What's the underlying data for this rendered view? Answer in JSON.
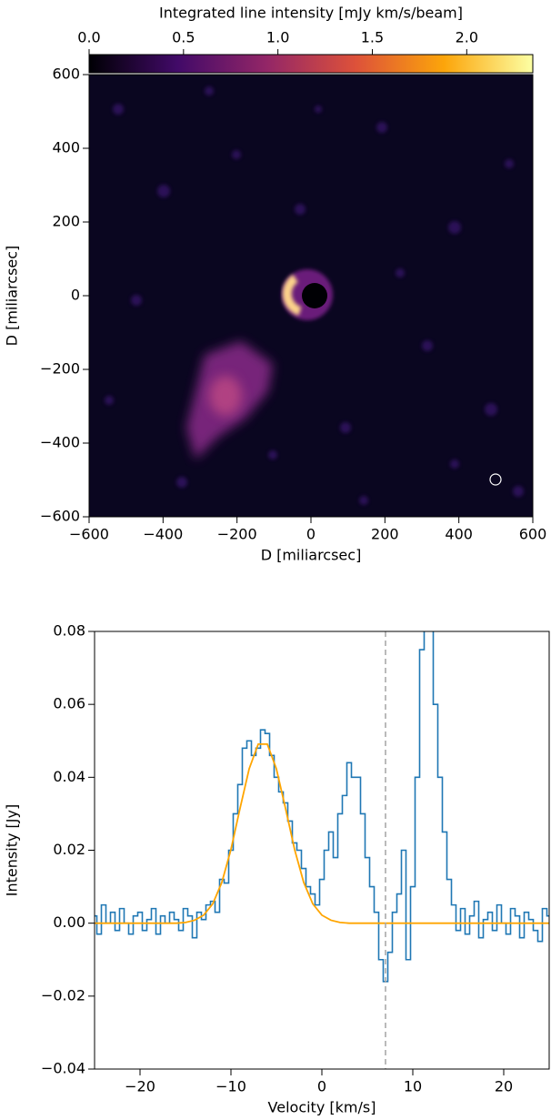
{
  "chart_data": [
    {
      "type": "image",
      "xlabel": "D [miliarcsec]",
      "ylabel": "D [miliarcsec]",
      "xlim": [
        -600,
        600
      ],
      "ylim": [
        -600,
        600
      ],
      "xticks": [
        {
          "value": -600,
          "label": "−600"
        },
        {
          "value": -400,
          "label": "−400"
        },
        {
          "value": -200,
          "label": "−200"
        },
        0,
        200,
        400,
        600
      ],
      "yticks": [
        {
          "value": -600,
          "label": "−600"
        },
        {
          "value": -400,
          "label": "−400"
        },
        {
          "value": -200,
          "label": "−200"
        },
        0,
        200,
        400,
        600
      ],
      "colorbar": {
        "label": "Integrated line intensity [mJy km/s/beam]",
        "lim": [
          0,
          2.35
        ],
        "ticks": [
          {
            "value": 0,
            "label": "0.0"
          },
          0.5,
          {
            "value": 1,
            "label": "1.0"
          },
          1.5,
          {
            "value": 2,
            "label": "2.0"
          }
        ],
        "colormap": [
          "#000004",
          "#420a68",
          "#932667",
          "#dd513a",
          "#fca50a",
          "#fcffa4"
        ]
      }
    },
    {
      "type": "line",
      "xlabel": "Velocity [km/s]",
      "ylabel": "Intensity [Jy]",
      "xlim": [
        -25,
        25
      ],
      "ylim": [
        -0.04,
        0.08
      ],
      "xticks": [
        {
          "value": -20,
          "label": "−20"
        },
        {
          "value": -10,
          "label": "−10"
        },
        0,
        10,
        20
      ],
      "yticks": [
        {
          "value": -0.04,
          "label": "−0.04"
        },
        {
          "value": -0.02,
          "label": "−0.02"
        },
        {
          "value": 0,
          "label": "0.00"
        },
        {
          "value": 0.02,
          "label": "0.02"
        },
        {
          "value": 0.04,
          "label": "0.04"
        },
        {
          "value": 0.06,
          "label": "0.06"
        },
        {
          "value": 0.08,
          "label": "0.08"
        }
      ],
      "vline_x": 7,
      "vline_color": "#aaaaaa",
      "series": [
        {
          "color": "#1f77b4",
          "step": true,
          "x": [
            -25,
            -24.5,
            -24,
            -23.5,
            -23,
            -22.5,
            -22,
            -21.5,
            -21,
            -20.5,
            -20,
            -19.5,
            -19,
            -18.5,
            -18,
            -17.5,
            -17,
            -16.5,
            -16,
            -15.5,
            -15,
            -14.5,
            -14,
            -13.5,
            -13,
            -12.5,
            -12,
            -11.5,
            -11,
            -10.5,
            -10,
            -9.5,
            -9,
            -8.5,
            -8,
            -7.5,
            -7,
            -6.5,
            -6,
            -5.5,
            -5,
            -4.5,
            -4,
            -3.5,
            -3,
            -2.5,
            -2,
            -1.5,
            -1,
            -0.5,
            0,
            0.5,
            1,
            1.5,
            2,
            2.5,
            3,
            3.5,
            4,
            4.5,
            5,
            5.5,
            6,
            6.5,
            7,
            7.5,
            8,
            8.5,
            9,
            9.5,
            10,
            10.5,
            11,
            11.5,
            12,
            12.5,
            13,
            13.5,
            14,
            14.5,
            15,
            15.5,
            16,
            16.5,
            17,
            17.5,
            18,
            18.5,
            19,
            19.5,
            20,
            20.5,
            21,
            21.5,
            22,
            22.5,
            23,
            23.5,
            24,
            24.5,
            25
          ],
          "values": [
            0.002,
            -0.003,
            0.005,
            0.0,
            0.003,
            -0.002,
            0.004,
            0.0,
            -0.003,
            0.002,
            0.003,
            -0.002,
            0.001,
            0.004,
            -0.003,
            0.002,
            0.0,
            0.003,
            0.001,
            -0.002,
            0.004,
            0.002,
            -0.004,
            0.003,
            0.001,
            0.005,
            0.006,
            0.003,
            0.012,
            0.011,
            0.02,
            0.03,
            0.038,
            0.048,
            0.05,
            0.046,
            0.048,
            0.053,
            0.052,
            0.046,
            0.04,
            0.036,
            0.033,
            0.028,
            0.022,
            0.02,
            0.015,
            0.01,
            0.008,
            0.005,
            0.012,
            0.02,
            0.025,
            0.018,
            0.03,
            0.035,
            0.044,
            0.04,
            0.04,
            0.03,
            0.018,
            0.01,
            0.003,
            -0.01,
            -0.016,
            -0.008,
            0.003,
            0.008,
            0.02,
            -0.01,
            0.01,
            0.04,
            0.075,
            0.09,
            0.082,
            0.06,
            0.04,
            0.025,
            0.012,
            0.005,
            -0.002,
            0.004,
            -0.003,
            0.002,
            0.006,
            -0.004,
            0.001,
            0.003,
            -0.002,
            0.005,
            0.0,
            -0.003,
            0.004,
            0.002,
            -0.004,
            0.003,
            0.001,
            -0.002,
            -0.005,
            0.004,
            0.002
          ]
        },
        {
          "color": "#ffa500",
          "step": false,
          "x": [
            -25,
            -24,
            -23,
            -22,
            -21,
            -20,
            -19,
            -18,
            -17,
            -16,
            -15,
            -14,
            -13,
            -12,
            -11,
            -10,
            -9,
            -8,
            -7,
            -6,
            -5,
            -4,
            -3,
            -2,
            -1,
            0,
            1,
            2,
            3,
            4,
            5,
            6,
            7,
            8,
            9,
            10,
            11,
            12,
            13,
            14,
            15,
            16,
            17,
            18,
            19,
            20,
            21,
            22,
            23,
            24,
            25
          ],
          "values": [
            0,
            0,
            0,
            0,
            0,
            0,
            0,
            0,
            0,
            0,
            0.0002,
            0.0008,
            0.0022,
            0.0053,
            0.0112,
            0.0202,
            0.0315,
            0.0423,
            0.0491,
            0.0491,
            0.0423,
            0.0315,
            0.0202,
            0.0112,
            0.0053,
            0.0022,
            0.0008,
            0.0002,
            0,
            0,
            0,
            0,
            0,
            0,
            0,
            0,
            0,
            0,
            0,
            0,
            0,
            0,
            0,
            0,
            0,
            0,
            0,
            0,
            0,
            0,
            0
          ]
        }
      ]
    }
  ]
}
